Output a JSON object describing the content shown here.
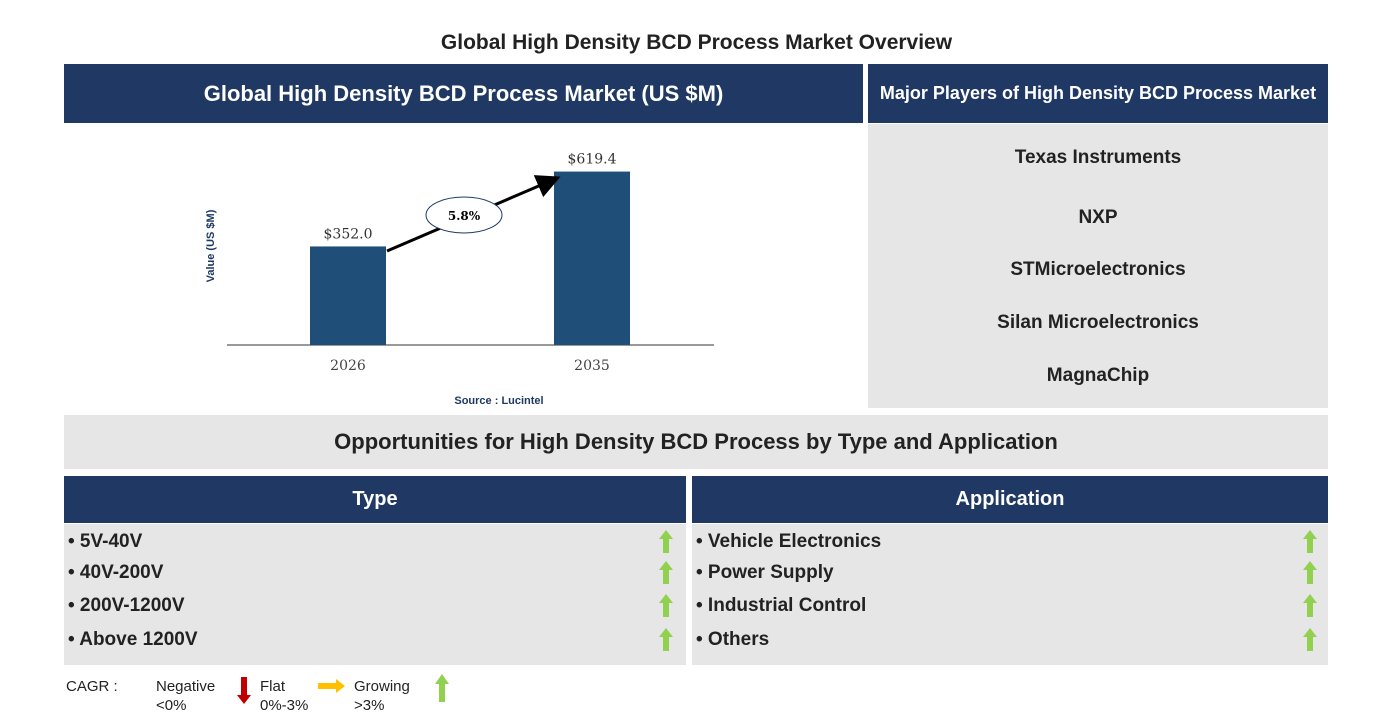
{
  "title": "Global High Density BCD Process Market Overview",
  "chart_panel": {
    "header": "Global High Density BCD Process Market (US $M)",
    "source": "Source : Lucintel"
  },
  "chart_data": {
    "type": "bar",
    "title": "Global High Density BCD Process Market (US $M)",
    "categories": [
      "2026",
      "2035"
    ],
    "values": [
      352.0,
      619.4
    ],
    "value_labels": [
      "$352.0",
      "$619.4"
    ],
    "ylabel": "Value (US $M)",
    "xlabel": "",
    "ylim": [
      0,
      700
    ],
    "annotation": "5.8%",
    "bar_color": "#1f4e79"
  },
  "players": {
    "header": "Major Players of High Density BCD Process Market",
    "items": [
      "Texas Instruments",
      "NXP",
      "STMicroelectronics",
      "Silan Microelectronics",
      "MagnaChip"
    ]
  },
  "opportunities": {
    "header": "Opportunities for High Density BCD Process by Type and Application",
    "type": {
      "header": "Type",
      "items": [
        "• 5V-40V",
        "• 40V-200V",
        "• 200V-1200V",
        "• Above 1200V"
      ]
    },
    "application": {
      "header": "Application",
      "items": [
        "• Vehicle Electronics",
        "• Power Supply",
        "• Industrial Control",
        "• Others"
      ]
    }
  },
  "legend": {
    "label": "CAGR :",
    "negative": "Negative",
    "negative_range": "<0%",
    "flat": "Flat",
    "flat_range": "0%-3%",
    "growing": "Growing",
    "growing_range": ">3%",
    "colors": {
      "negative": "#c00000",
      "flat": "#ffc000",
      "growing": "#92d050"
    }
  }
}
